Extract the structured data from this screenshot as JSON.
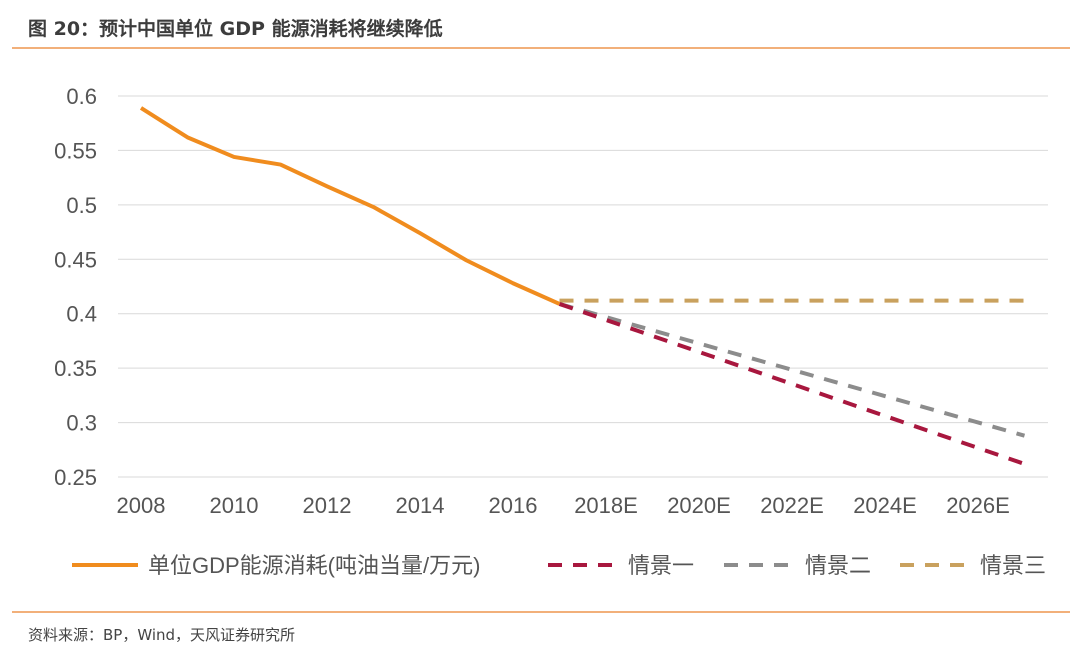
{
  "title": "图 20：预计中国单位 GDP 能源消耗将继续降低",
  "source": "资料来源：BP，Wind，天风证券研究所",
  "chart_data": {
    "type": "line",
    "xlim": [
      2008,
      2027
    ],
    "ylim": [
      0.25,
      0.6
    ],
    "grid": true,
    "legend_position": "bottom",
    "x_tick_values": [
      2008,
      2010,
      2012,
      2014,
      2016,
      2018,
      2020,
      2022,
      2024,
      2026
    ],
    "x_tick_labels": [
      "2008",
      "2010",
      "2012",
      "2014",
      "2016",
      "2018E",
      "2020E",
      "2022E",
      "2024E",
      "2026E"
    ],
    "y_tick_values": [
      0.6,
      0.55,
      0.5,
      0.45,
      0.4,
      0.35,
      0.3,
      0.25
    ],
    "y_tick_labels": [
      "0.6",
      "0.55",
      "0.5",
      "0.45",
      "0.4",
      "0.35",
      "0.3",
      "0.25"
    ],
    "series": [
      {
        "name": "单位GDP能源消耗(吨油当量/万元)",
        "color": "#f08c1e",
        "dash": false,
        "x": [
          2008,
          2009,
          2010,
          2011,
          2012,
          2013,
          2014,
          2015,
          2016,
          2017
        ],
        "y": [
          0.589,
          0.562,
          0.544,
          0.537,
          0.517,
          0.498,
          0.474,
          0.449,
          0.428,
          0.409
        ]
      },
      {
        "name": "情景一",
        "color": "#a8173e",
        "dash": true,
        "x": [
          2017,
          2027
        ],
        "y": [
          0.409,
          0.262
        ]
      },
      {
        "name": "情景二",
        "color": "#8c8c8c",
        "dash": true,
        "x": [
          2017,
          2027
        ],
        "y": [
          0.409,
          0.288
        ]
      },
      {
        "name": "情景三",
        "color": "#c9a15e",
        "dash": true,
        "x": [
          2017,
          2027
        ],
        "y": [
          0.412,
          0.412
        ]
      }
    ]
  }
}
